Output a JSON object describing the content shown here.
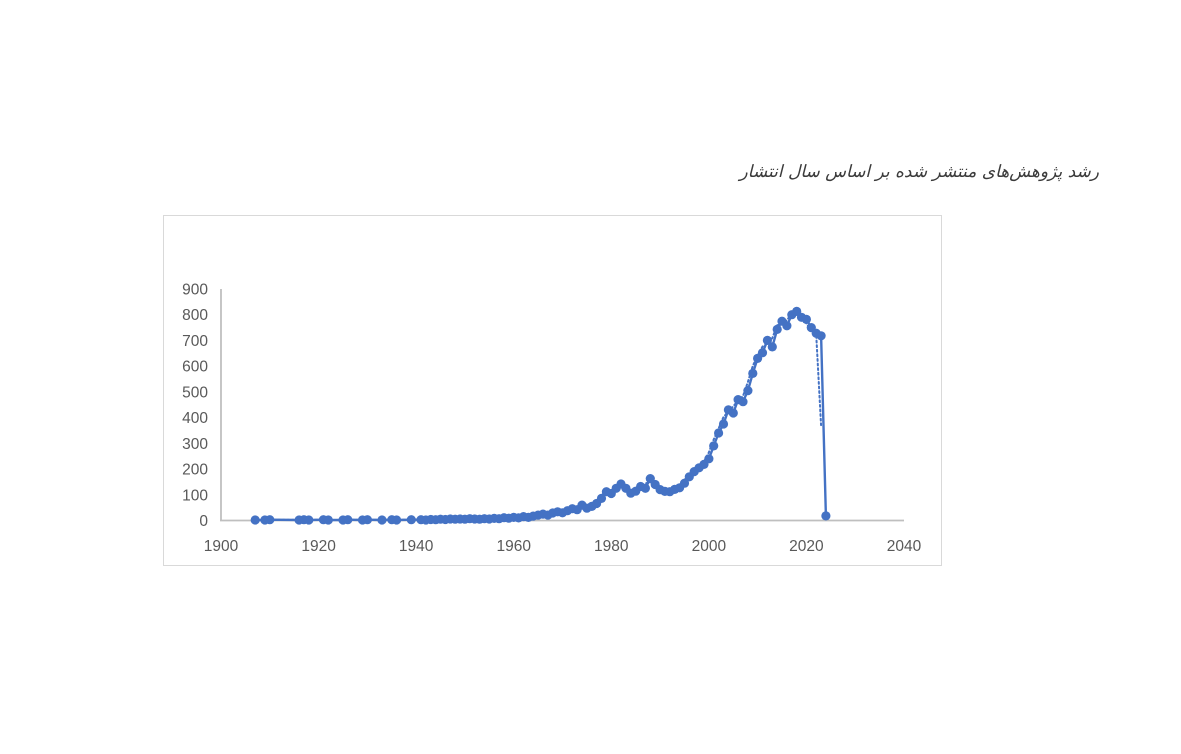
{
  "title": "رشد پژوهش‌های منتشر شده بر اساس سال انتشار",
  "colors": {
    "series": "#4472C4",
    "axis_line": "#bfbfbf",
    "tick_text": "#595959",
    "frame_border": "#d9d9d9",
    "title_text": "#3b3b3b",
    "background": "#ffffff"
  },
  "chart_data": {
    "type": "scatter",
    "title": "رشد پژوهش‌های منتشر شده بر اساس سال انتشار",
    "xlabel": "",
    "ylabel": "",
    "xlim": [
      1900,
      2040
    ],
    "ylim": [
      0,
      900
    ],
    "x_ticks": [
      "1900",
      "1920",
      "1940",
      "1960",
      "1980",
      "2000",
      "2020",
      "2040"
    ],
    "y_ticks": [
      "0",
      "100",
      "200",
      "300",
      "400",
      "500",
      "600",
      "700",
      "800",
      "900"
    ],
    "grid": false,
    "legend": "none",
    "marker": "circle",
    "line_style": "solid",
    "trendline": {
      "type": "moving_average",
      "period": 2,
      "style": "dotted"
    },
    "points": [
      [
        1907,
        2
      ],
      [
        1909,
        2
      ],
      [
        1910,
        3
      ],
      [
        1916,
        2
      ],
      [
        1917,
        3
      ],
      [
        1918,
        2
      ],
      [
        1921,
        3
      ],
      [
        1922,
        2
      ],
      [
        1925,
        2
      ],
      [
        1926,
        3
      ],
      [
        1929,
        2
      ],
      [
        1930,
        3
      ],
      [
        1933,
        2
      ],
      [
        1935,
        3
      ],
      [
        1936,
        2
      ],
      [
        1939,
        3
      ],
      [
        1941,
        3
      ],
      [
        1942,
        2
      ],
      [
        1943,
        4
      ],
      [
        1944,
        3
      ],
      [
        1945,
        5
      ],
      [
        1946,
        4
      ],
      [
        1947,
        6
      ],
      [
        1948,
        5
      ],
      [
        1949,
        6
      ],
      [
        1950,
        5
      ],
      [
        1951,
        7
      ],
      [
        1952,
        6
      ],
      [
        1953,
        5
      ],
      [
        1954,
        7
      ],
      [
        1955,
        6
      ],
      [
        1956,
        8
      ],
      [
        1957,
        7
      ],
      [
        1958,
        11
      ],
      [
        1959,
        9
      ],
      [
        1960,
        12
      ],
      [
        1961,
        10
      ],
      [
        1962,
        15
      ],
      [
        1963,
        12
      ],
      [
        1964,
        17
      ],
      [
        1965,
        21
      ],
      [
        1966,
        25
      ],
      [
        1967,
        21
      ],
      [
        1968,
        29
      ],
      [
        1969,
        34
      ],
      [
        1970,
        30
      ],
      [
        1971,
        38
      ],
      [
        1972,
        46
      ],
      [
        1973,
        42
      ],
      [
        1974,
        60
      ],
      [
        1975,
        48
      ],
      [
        1976,
        55
      ],
      [
        1977,
        66
      ],
      [
        1978,
        86
      ],
      [
        1979,
        112
      ],
      [
        1980,
        105
      ],
      [
        1981,
        125
      ],
      [
        1982,
        142
      ],
      [
        1983,
        125
      ],
      [
        1984,
        106
      ],
      [
        1985,
        114
      ],
      [
        1986,
        132
      ],
      [
        1987,
        125
      ],
      [
        1988,
        163
      ],
      [
        1989,
        140
      ],
      [
        1990,
        120
      ],
      [
        1991,
        113
      ],
      [
        1992,
        112
      ],
      [
        1993,
        121
      ],
      [
        1994,
        127
      ],
      [
        1995,
        145
      ],
      [
        1996,
        170
      ],
      [
        1997,
        190
      ],
      [
        1998,
        205
      ],
      [
        1999,
        218
      ],
      [
        2000,
        240
      ],
      [
        2001,
        290
      ],
      [
        2002,
        340
      ],
      [
        2003,
        375
      ],
      [
        2004,
        430
      ],
      [
        2005,
        418
      ],
      [
        2006,
        470
      ],
      [
        2007,
        462
      ],
      [
        2008,
        505
      ],
      [
        2009,
        572
      ],
      [
        2010,
        630
      ],
      [
        2011,
        652
      ],
      [
        2012,
        700
      ],
      [
        2013,
        675
      ],
      [
        2014,
        743
      ],
      [
        2015,
        775
      ],
      [
        2016,
        757
      ],
      [
        2017,
        800
      ],
      [
        2018,
        813
      ],
      [
        2019,
        790
      ],
      [
        2020,
        782
      ],
      [
        2021,
        750
      ],
      [
        2022,
        728
      ],
      [
        2023,
        718
      ],
      [
        2024,
        18
      ]
    ]
  }
}
